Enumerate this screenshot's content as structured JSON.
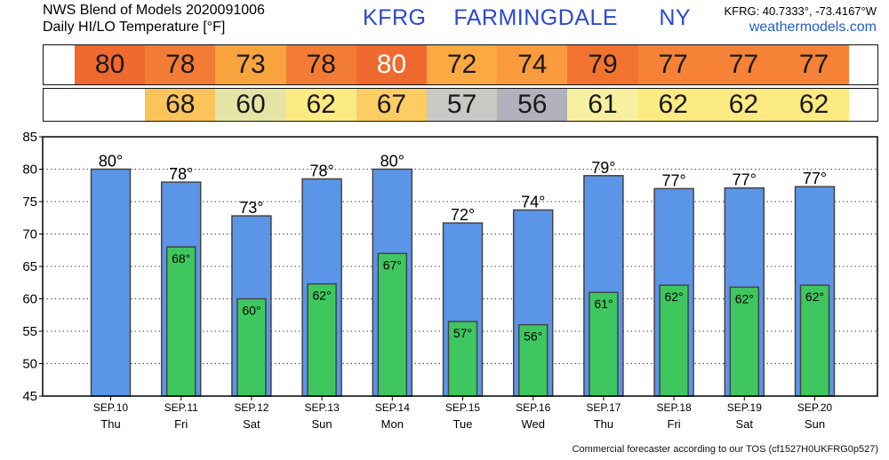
{
  "header": {
    "line1": "NWS Blend of Models 2020091006",
    "line2": "Daily HI/LO Temperature [°F]",
    "station": "KFRG  FARMINGDALE   NY",
    "coords": "KFRG: 40.7333°, -73.4167°W",
    "site": "weathermodels.com"
  },
  "footer": "Commercial forecaster according to our TOS (cf1527H0UKFRG0p527)",
  "strips": {
    "hi": [
      {
        "value": "80",
        "color": "#ef6a2e",
        "text_color": "#1a1a1a"
      },
      {
        "value": "78",
        "color": "#f37c35",
        "text_color": "#1a1a1a"
      },
      {
        "value": "73",
        "color": "#f9a43f",
        "text_color": "#1a1a1a"
      },
      {
        "value": "78",
        "color": "#f37c35",
        "text_color": "#1a1a1a"
      },
      {
        "value": "80",
        "color": "#ef6a2e",
        "text_color": "#ffffff"
      },
      {
        "value": "72",
        "color": "#fba942",
        "text_color": "#1a1a1a"
      },
      {
        "value": "74",
        "color": "#f99a3c",
        "text_color": "#1a1a1a"
      },
      {
        "value": "79",
        "color": "#f27330",
        "text_color": "#1a1a1a"
      },
      {
        "value": "77",
        "color": "#f58236",
        "text_color": "#1a1a1a"
      },
      {
        "value": "77",
        "color": "#f58236",
        "text_color": "#1a1a1a"
      },
      {
        "value": "77",
        "color": "#f58236",
        "text_color": "#1a1a1a"
      }
    ],
    "lo": [
      {
        "value": "",
        "color": "#ffffff",
        "text_color": "#1a1a1a"
      },
      {
        "value": "68",
        "color": "#fbc45a",
        "text_color": "#1a1a1a"
      },
      {
        "value": "60",
        "color": "#e5e3a6",
        "text_color": "#1a1a1a"
      },
      {
        "value": "62",
        "color": "#fbeb82",
        "text_color": "#1a1a1a"
      },
      {
        "value": "67",
        "color": "#fccd62",
        "text_color": "#1a1a1a"
      },
      {
        "value": "57",
        "color": "#c8c8c4",
        "text_color": "#1a1a1a"
      },
      {
        "value": "56",
        "color": "#b1b0bc",
        "text_color": "#1a1a1a"
      },
      {
        "value": "61",
        "color": "#f6f0a0",
        "text_color": "#1a1a1a"
      },
      {
        "value": "62",
        "color": "#fbeb82",
        "text_color": "#1a1a1a"
      },
      {
        "value": "62",
        "color": "#fbeb82",
        "text_color": "#1a1a1a"
      },
      {
        "value": "62",
        "color": "#fbeb82",
        "text_color": "#1a1a1a"
      }
    ]
  },
  "chart_data": {
    "type": "bar",
    "title": "",
    "xlabel": "",
    "ylabel": "",
    "ylim": [
      45,
      85
    ],
    "yticks": [
      45,
      50,
      55,
      60,
      65,
      70,
      75,
      80,
      85
    ],
    "grid": true,
    "categories": [
      "SEP.10",
      "SEP.11",
      "SEP.12",
      "SEP.13",
      "SEP.14",
      "SEP.15",
      "SEP.16",
      "SEP.17",
      "SEP.18",
      "SEP.19",
      "SEP.20"
    ],
    "weekdays": [
      "Thu",
      "Fri",
      "Sat",
      "Sun",
      "Mon",
      "Tue",
      "Wed",
      "Thu",
      "Fri",
      "Sat",
      "Sun"
    ],
    "series": [
      {
        "key": "hi",
        "color": "#5b95e8",
        "values": [
          80,
          78,
          72.8,
          78.5,
          80,
          71.7,
          73.7,
          79,
          77,
          77.1,
          77.3
        ],
        "labels": [
          "80°",
          "78°",
          "73°",
          "78°",
          "80°",
          "72°",
          "74°",
          "79°",
          "77°",
          "77°",
          "77°"
        ]
      },
      {
        "key": "lo",
        "color": "#3fc75f",
        "values": [
          null,
          68,
          60,
          62.3,
          67,
          56.5,
          56,
          61,
          62.1,
          61.8,
          62.1
        ],
        "labels": [
          "",
          "68°",
          "60°",
          "62°",
          "67°",
          "57°",
          "56°",
          "61°",
          "62°",
          "62°",
          "62°"
        ]
      }
    ]
  }
}
